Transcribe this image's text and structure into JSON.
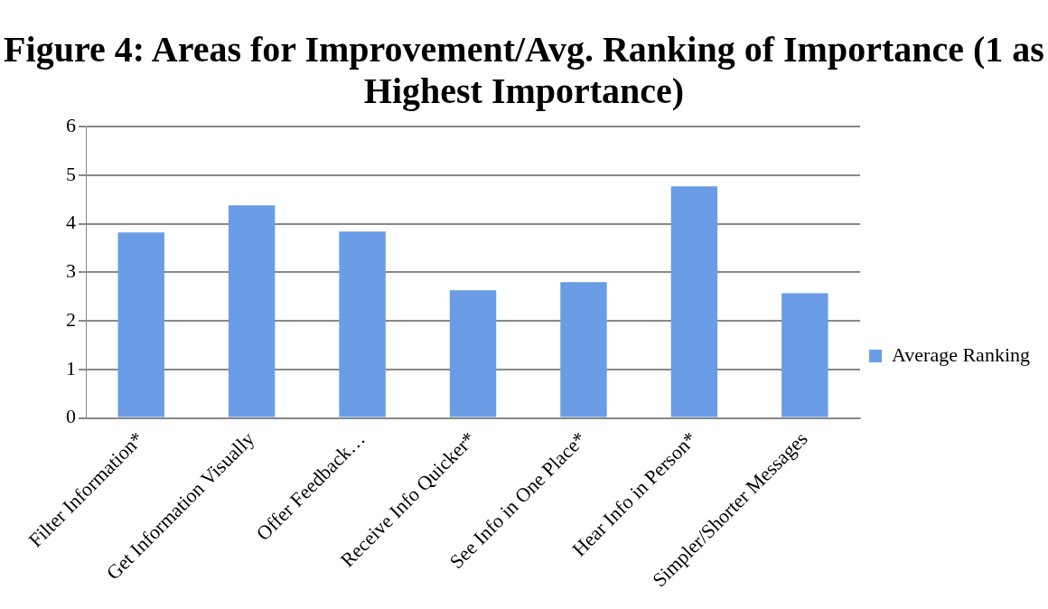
{
  "chart_data": {
    "type": "bar",
    "title": "Figure 4: Areas for Improvement/Avg. Ranking of Importance (1 as Highest Importance)",
    "categories": [
      "Filter Information*",
      "Get Information Visually",
      "Offer Feedback…",
      "Receive Info Quicker*",
      "See Info in One Place*",
      "Hear Info in Person*",
      "Simpler/Shorter Messages"
    ],
    "series": [
      {
        "name": "Average Ranking",
        "color": "#6a9de6",
        "values": [
          3.82,
          4.38,
          3.84,
          2.63,
          2.8,
          4.77,
          2.57
        ]
      }
    ],
    "ylim": [
      0,
      6
    ],
    "yticks": [
      0,
      1,
      2,
      3,
      4,
      5,
      6
    ],
    "grid": "y",
    "legend": "right"
  }
}
